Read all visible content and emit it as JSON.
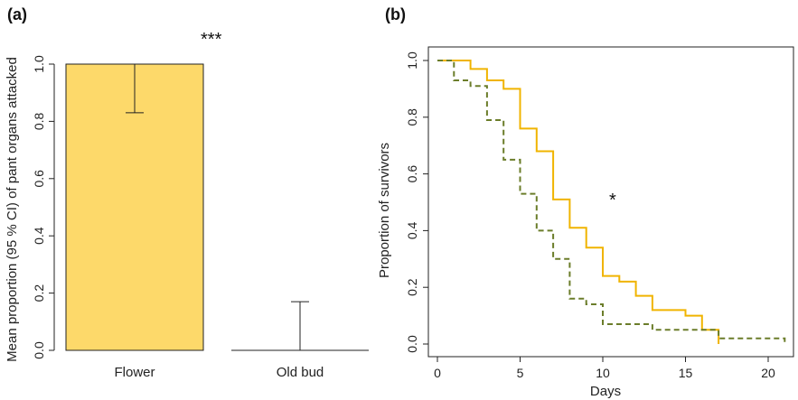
{
  "chart_data": [
    {
      "type": "bar",
      "panel_label": "(a)",
      "categories": [
        "Flower",
        "Old bud"
      ],
      "values": [
        1.0,
        0.0
      ],
      "ci_lower": [
        0.83,
        0.0
      ],
      "ci_upper": [
        1.0,
        0.17
      ],
      "ylabel": "Mean proportion (95 % CI) of pant organs attacked",
      "xlabel": "",
      "ylim": [
        0,
        1
      ],
      "yticks": [
        "0.0",
        "0.2",
        "0.4",
        "0.6",
        "0.8",
        "1.0"
      ],
      "significance": "***",
      "bar_color": "#fdd96a"
    },
    {
      "type": "line",
      "panel_label": "(b)",
      "xlabel": "Days",
      "ylabel": "Proportion of survivors",
      "xlim": [
        0,
        21
      ],
      "ylim": [
        0,
        1
      ],
      "xticks": [
        "0",
        "5",
        "10",
        "15",
        "20"
      ],
      "yticks": [
        "0.0",
        "0.2",
        "0.4",
        "0.6",
        "0.8",
        "1.0"
      ],
      "significance": "*",
      "series": [
        {
          "color": "#f0b400",
          "style": "solid",
          "x": [
            0,
            1,
            2,
            3,
            4,
            5,
            6,
            7,
            8,
            9,
            10,
            11,
            12,
            13,
            15,
            16,
            17
          ],
          "y": [
            1.0,
            1.0,
            0.97,
            0.93,
            0.9,
            0.76,
            0.68,
            0.51,
            0.41,
            0.34,
            0.24,
            0.22,
            0.17,
            0.12,
            0.1,
            0.05,
            0.0
          ]
        },
        {
          "color": "#6b7d2a",
          "style": "dashed",
          "x": [
            0,
            1,
            2,
            3,
            4,
            5,
            6,
            7,
            8,
            9,
            10,
            13,
            17,
            21
          ],
          "y": [
            1.0,
            0.93,
            0.91,
            0.79,
            0.65,
            0.53,
            0.4,
            0.3,
            0.16,
            0.14,
            0.07,
            0.05,
            0.02,
            0.0
          ]
        }
      ]
    }
  ]
}
